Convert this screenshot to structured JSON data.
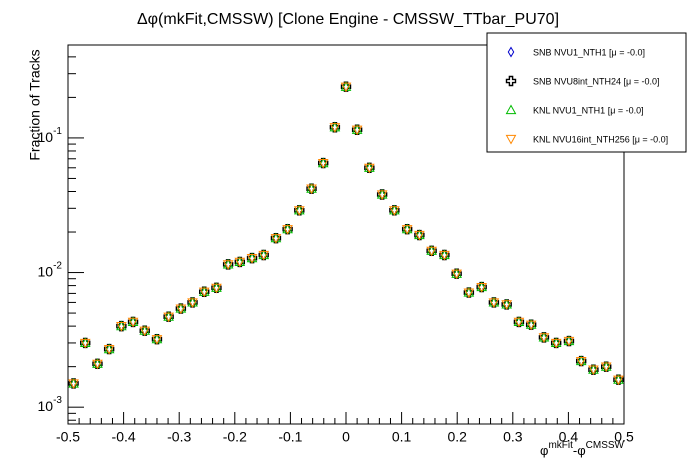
{
  "chart_data": {
    "type": "scatter",
    "title": "Δφ(mkFit,CMSSW) [Clone Engine - CMSSW_TTbar_PU70]",
    "ylabel": "Fraction of Tracks",
    "xlabel_parts": [
      "φ",
      "mkFit",
      "-φ",
      "CMSSW"
    ],
    "log_y": true,
    "xlim": [
      -0.5,
      0.5
    ],
    "ylim": [
      0.00075,
      0.49
    ],
    "xticks": [
      -0.5,
      -0.4,
      -0.3,
      -0.2,
      -0.1,
      0,
      0.1,
      0.2,
      0.3,
      0.4,
      0.5
    ],
    "yticks": [
      {
        "value": 0.001,
        "label": "10",
        "exponent": "-3"
      },
      {
        "value": 0.01,
        "label": "10",
        "exponent": "-2"
      },
      {
        "value": 0.1,
        "label": "10",
        "exponent": "-1"
      }
    ],
    "x": [
      -0.49,
      -0.469,
      -0.447,
      -0.426,
      -0.404,
      -0.383,
      -0.362,
      -0.34,
      -0.319,
      -0.297,
      -0.276,
      -0.255,
      -0.233,
      -0.212,
      -0.191,
      -0.169,
      -0.148,
      -0.126,
      -0.105,
      -0.084,
      -0.062,
      -0.041,
      -0.02,
      0,
      0.02,
      0.042,
      0.065,
      0.087,
      0.11,
      0.132,
      0.154,
      0.177,
      0.199,
      0.221,
      0.244,
      0.266,
      0.289,
      0.311,
      0.333,
      0.356,
      0.378,
      0.401,
      0.423,
      0.445,
      0.468,
      0.49
    ],
    "series": [
      {
        "name": "SNB NVU1_NTH1 [μ = -0.0]",
        "color": "#0000cc",
        "marker": "diamond",
        "values": [
          0.0015,
          0.003,
          0.0021,
          0.0027,
          0.004,
          0.0043,
          0.0037,
          0.0032,
          0.0047,
          0.0054,
          0.006,
          0.0072,
          0.0077,
          0.0115,
          0.012,
          0.0128,
          0.0135,
          0.018,
          0.021,
          0.029,
          0.042,
          0.065,
          0.12,
          0.24,
          0.115,
          0.06,
          0.038,
          0.029,
          0.021,
          0.019,
          0.0145,
          0.0135,
          0.0098,
          0.0071,
          0.0078,
          0.006,
          0.0058,
          0.0043,
          0.0041,
          0.0033,
          0.003,
          0.0031,
          0.0022,
          0.0019,
          0.002,
          0.0016
        ]
      },
      {
        "name": "SNB NVU8int_NTH24 [μ = -0.0]",
        "color": "#000000",
        "marker": "cross",
        "values": [
          0.0015,
          0.003,
          0.0021,
          0.0027,
          0.004,
          0.0043,
          0.0037,
          0.0032,
          0.0047,
          0.0054,
          0.006,
          0.0072,
          0.0077,
          0.0115,
          0.012,
          0.0128,
          0.0135,
          0.018,
          0.021,
          0.029,
          0.042,
          0.065,
          0.12,
          0.24,
          0.115,
          0.06,
          0.038,
          0.029,
          0.021,
          0.019,
          0.0145,
          0.0135,
          0.0098,
          0.0071,
          0.0078,
          0.006,
          0.0058,
          0.0043,
          0.0041,
          0.0033,
          0.003,
          0.0031,
          0.0022,
          0.0019,
          0.002,
          0.0016
        ]
      },
      {
        "name": "KNL NVU1_NTH1 [μ = -0.0]",
        "color": "#00bb00",
        "marker": "triangle-up",
        "values": [
          0.0015,
          0.003,
          0.0021,
          0.0027,
          0.004,
          0.0043,
          0.0037,
          0.0032,
          0.0047,
          0.0054,
          0.006,
          0.0072,
          0.0077,
          0.0115,
          0.012,
          0.0128,
          0.0135,
          0.018,
          0.021,
          0.029,
          0.042,
          0.065,
          0.12,
          0.24,
          0.115,
          0.06,
          0.038,
          0.029,
          0.021,
          0.019,
          0.0145,
          0.0135,
          0.0098,
          0.0071,
          0.0078,
          0.006,
          0.0058,
          0.0043,
          0.0041,
          0.0033,
          0.003,
          0.0031,
          0.0022,
          0.0019,
          0.002,
          0.0016
        ]
      },
      {
        "name": "KNL NVU16int_NTH256 [μ = -0.0]",
        "color": "#ff8800",
        "marker": "triangle-down",
        "values": [
          0.0015,
          0.003,
          0.0021,
          0.0027,
          0.004,
          0.0043,
          0.0037,
          0.0032,
          0.0047,
          0.0054,
          0.006,
          0.0072,
          0.0077,
          0.0115,
          0.012,
          0.0128,
          0.0135,
          0.018,
          0.021,
          0.029,
          0.042,
          0.065,
          0.12,
          0.24,
          0.115,
          0.06,
          0.038,
          0.029,
          0.021,
          0.019,
          0.0145,
          0.0135,
          0.0098,
          0.0071,
          0.0078,
          0.006,
          0.0058,
          0.0043,
          0.0041,
          0.0033,
          0.003,
          0.0031,
          0.0022,
          0.0019,
          0.002,
          0.0016
        ]
      }
    ]
  }
}
